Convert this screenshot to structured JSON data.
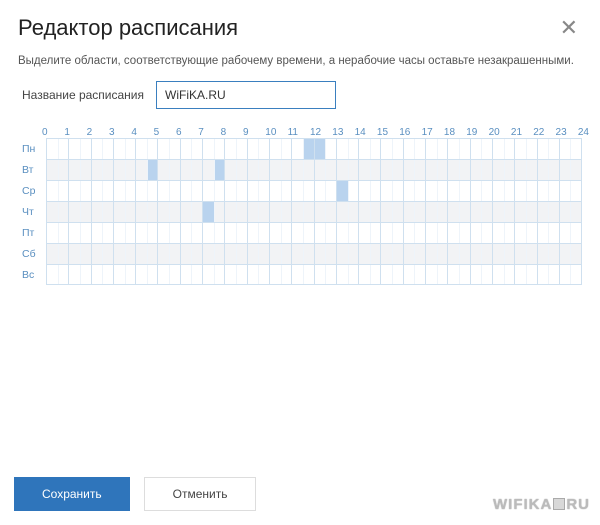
{
  "header": {
    "title": "Редактор расписания",
    "hint": "Выделите области, соответствующие рабочему времени, а нерабочие часы оставьте незакрашенными."
  },
  "name_field": {
    "label": "Название расписания",
    "value": "WiFiKA.RU"
  },
  "schedule": {
    "hours": [
      "0",
      "1",
      "2",
      "3",
      "4",
      "5",
      "6",
      "7",
      "8",
      "9",
      "10",
      "11",
      "12",
      "13",
      "14",
      "15",
      "16",
      "17",
      "18",
      "19",
      "20",
      "21",
      "22",
      "23",
      "24"
    ],
    "days": [
      "Пн",
      "Вт",
      "Ср",
      "Чт",
      "Пт",
      "Сб",
      "Вс"
    ],
    "alt_row_bg": "#f2f3f5",
    "cell_border_color": "#cfe0ef",
    "half_divider_color": "#eef4fa",
    "label_color": "#5a8fc0",
    "selected_color": "#b9d3ee",
    "selections": [
      {
        "day": 0,
        "hour": 11,
        "half": "right"
      },
      {
        "day": 0,
        "hour": 12,
        "half": "left"
      },
      {
        "day": 1,
        "hour": 4,
        "half": "right"
      },
      {
        "day": 1,
        "hour": 7,
        "half": "right"
      },
      {
        "day": 2,
        "hour": 13,
        "half": "left"
      },
      {
        "day": 3,
        "hour": 7,
        "half": "left"
      }
    ]
  },
  "buttons": {
    "save": "Сохранить",
    "cancel": "Отменить"
  },
  "watermark": "WIFIKA.RU",
  "colors": {
    "primary": "#2f75bb",
    "border_input": "#3a7fbf"
  }
}
